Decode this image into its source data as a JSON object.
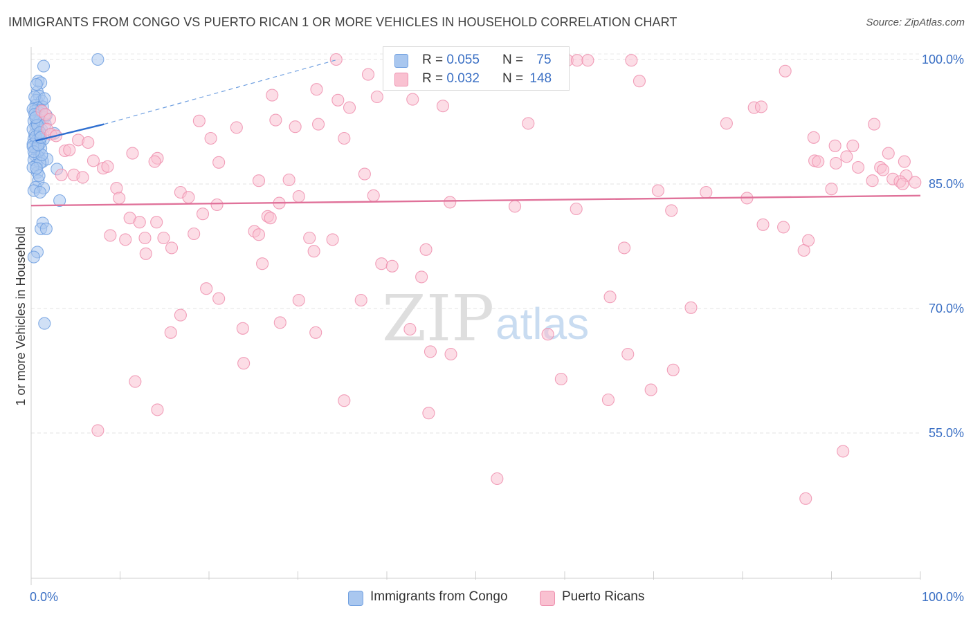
{
  "title": "IMMIGRANTS FROM CONGO VS PUERTO RICAN 1 OR MORE VEHICLES IN HOUSEHOLD CORRELATION CHART",
  "source": "Source: ZipAtlas.com",
  "legend": {
    "rows": [
      {
        "r_label": "R = ",
        "r_value": "0.055",
        "n_label": "N = ",
        "n_value": "75",
        "color": "#a9c7ef",
        "stroke": "#6f9fe0"
      },
      {
        "r_label": "R = ",
        "r_value": "0.032",
        "n_label": "N = ",
        "n_value": "148",
        "color": "#f9c1d1",
        "stroke": "#ee8fae"
      }
    ]
  },
  "bottom_legend": [
    {
      "label": "Immigrants from Congo",
      "color": "#a9c7ef"
    },
    {
      "label": "Puerto Ricans",
      "color": "#f9c1d1"
    }
  ],
  "chart_data": {
    "type": "scatter",
    "title": "IMMIGRANTS FROM CONGO VS PUERTO RICAN 1 OR MORE VEHICLES IN HOUSEHOLD CORRELATION CHART",
    "xlabel": "",
    "ylabel": "1 or more Vehicles in Household",
    "xlim": [
      0,
      100
    ],
    "ylim": [
      40,
      100.5
    ],
    "x_tick_labels": [
      "0.0%",
      "100.0%"
    ],
    "y_ticks": [
      55,
      70,
      85,
      100
    ],
    "y_tick_labels": [
      "55.0%",
      "70.0%",
      "85.0%",
      "100.0%"
    ],
    "grid": true,
    "watermark": {
      "left": "ZIP",
      "right": "atlas"
    },
    "series": [
      {
        "name": "Immigrants from Congo",
        "color": "#6f9fe0",
        "fill": "#a9c7ef",
        "trend": {
          "x": [
            0.5,
            8.2
          ],
          "y": [
            90.2,
            92.2
          ],
          "dashed_to": [
            34.5,
            100
          ]
        },
        "points": [
          [
            7.5,
            100
          ],
          [
            1.4,
            99.2
          ],
          [
            0.8,
            97.4
          ],
          [
            1.1,
            97.2
          ],
          [
            0.7,
            96.1
          ],
          [
            0.9,
            95.6
          ],
          [
            0.6,
            95.1
          ],
          [
            1.2,
            95.0
          ],
          [
            0.5,
            94.5
          ],
          [
            0.8,
            94.2
          ],
          [
            1.3,
            94.3
          ],
          [
            0.4,
            93.8
          ],
          [
            0.9,
            93.6
          ],
          [
            1.1,
            93.9
          ],
          [
            0.6,
            93.2
          ],
          [
            1.5,
            93.0
          ],
          [
            0.3,
            92.6
          ],
          [
            0.7,
            92.4
          ],
          [
            1.0,
            92.7
          ],
          [
            0.5,
            92.0
          ],
          [
            0.8,
            91.7
          ],
          [
            1.2,
            91.5
          ],
          [
            0.4,
            91.0
          ],
          [
            0.9,
            90.9
          ],
          [
            2.6,
            91.1
          ],
          [
            0.3,
            90.4
          ],
          [
            0.6,
            90.2
          ],
          [
            1.4,
            90.4
          ],
          [
            0.2,
            89.8
          ],
          [
            0.7,
            89.6
          ],
          [
            1.0,
            89.9
          ],
          [
            0.5,
            89.2
          ],
          [
            0.8,
            89.0
          ],
          [
            1.1,
            89.3
          ],
          [
            0.4,
            88.5
          ],
          [
            0.9,
            88.2
          ],
          [
            0.3,
            87.9
          ],
          [
            1.3,
            87.7
          ],
          [
            1.8,
            88.0
          ],
          [
            0.6,
            87.3
          ],
          [
            1.0,
            87.5
          ],
          [
            2.9,
            86.8
          ],
          [
            0.7,
            86.4
          ],
          [
            0.8,
            85.4
          ],
          [
            0.5,
            84.6
          ],
          [
            1.4,
            84.5
          ],
          [
            0.3,
            84.2
          ],
          [
            1.0,
            84.0
          ],
          [
            3.2,
            83.0
          ],
          [
            1.3,
            80.3
          ],
          [
            1.1,
            79.6
          ],
          [
            1.7,
            79.6
          ],
          [
            0.7,
            76.8
          ],
          [
            0.3,
            76.2
          ],
          [
            1.5,
            68.2
          ],
          [
            0.2,
            94.0
          ],
          [
            0.2,
            91.6
          ],
          [
            0.2,
            89.5
          ],
          [
            0.2,
            87.0
          ],
          [
            0.4,
            95.5
          ],
          [
            1.6,
            92.2
          ],
          [
            0.6,
            97.0
          ],
          [
            1.2,
            88.5
          ],
          [
            0.9,
            86.0
          ],
          [
            0.5,
            90.7
          ],
          [
            1.5,
            95.3
          ],
          [
            0.4,
            93.4
          ],
          [
            0.7,
            92.1
          ],
          [
            1.0,
            91.2
          ],
          [
            0.3,
            88.9
          ],
          [
            0.6,
            86.9
          ],
          [
            1.7,
            93.3
          ],
          [
            0.8,
            89.7
          ],
          [
            0.5,
            93.0
          ],
          [
            1.1,
            90.6
          ]
        ]
      },
      {
        "name": "Puerto Ricans",
        "color": "#ee8fae",
        "fill": "#f9c1d1",
        "trend": {
          "x": [
            0,
            100
          ],
          "y": [
            82.4,
            83.6
          ]
        },
        "points": [
          [
            34.3,
            100
          ],
          [
            43.7,
            99.9
          ],
          [
            47.8,
            99.9
          ],
          [
            50.3,
            99.9
          ],
          [
            60.3,
            99.9
          ],
          [
            61.4,
            99.9
          ],
          [
            62.6,
            99.9
          ],
          [
            67.5,
            99.9
          ],
          [
            47.3,
            98.2
          ],
          [
            37.9,
            98.2
          ],
          [
            84.8,
            98.6
          ],
          [
            43.8,
            97.4
          ],
          [
            45.1,
            97.3
          ],
          [
            46.6,
            97.2
          ],
          [
            68.4,
            97.4
          ],
          [
            32.1,
            96.4
          ],
          [
            27.1,
            95.7
          ],
          [
            38.9,
            95.5
          ],
          [
            42.9,
            95.2
          ],
          [
            34.5,
            95.1
          ],
          [
            46.3,
            94.4
          ],
          [
            35.8,
            94.2
          ],
          [
            81.3,
            94.2
          ],
          [
            82.1,
            94.3
          ],
          [
            1.2,
            93.8
          ],
          [
            1.6,
            93.4
          ],
          [
            2.1,
            92.8
          ],
          [
            18.9,
            92.6
          ],
          [
            27.5,
            92.7
          ],
          [
            32.3,
            92.2
          ],
          [
            55.9,
            92.3
          ],
          [
            78.2,
            92.3
          ],
          [
            94.8,
            92.2
          ],
          [
            23.1,
            91.8
          ],
          [
            29.7,
            91.9
          ],
          [
            1.8,
            91.6
          ],
          [
            2.2,
            91.0
          ],
          [
            2.8,
            90.8
          ],
          [
            20.2,
            90.5
          ],
          [
            35.2,
            90.5
          ],
          [
            88.0,
            90.6
          ],
          [
            5.3,
            90.3
          ],
          [
            6.4,
            90.0
          ],
          [
            90.4,
            89.6
          ],
          [
            92.4,
            89.6
          ],
          [
            3.8,
            89.0
          ],
          [
            4.3,
            89.1
          ],
          [
            11.4,
            88.7
          ],
          [
            14.2,
            88.1
          ],
          [
            96.4,
            88.7
          ],
          [
            7.0,
            87.8
          ],
          [
            13.9,
            87.7
          ],
          [
            21.1,
            87.6
          ],
          [
            88.1,
            87.8
          ],
          [
            88.5,
            87.7
          ],
          [
            90.5,
            87.5
          ],
          [
            91.7,
            88.3
          ],
          [
            98.2,
            87.7
          ],
          [
            8.1,
            86.9
          ],
          [
            8.6,
            87.1
          ],
          [
            93.0,
            87.0
          ],
          [
            95.5,
            87.0
          ],
          [
            95.8,
            86.7
          ],
          [
            3.4,
            86.1
          ],
          [
            4.8,
            86.1
          ],
          [
            5.8,
            85.8
          ],
          [
            25.6,
            85.4
          ],
          [
            29.0,
            85.5
          ],
          [
            37.5,
            86.2
          ],
          [
            98.4,
            86.0
          ],
          [
            99.4,
            85.2
          ],
          [
            94.6,
            85.4
          ],
          [
            96.9,
            85.6
          ],
          [
            97.7,
            85.3
          ],
          [
            98.0,
            85.0
          ],
          [
            9.6,
            84.5
          ],
          [
            16.8,
            84.0
          ],
          [
            70.5,
            84.2
          ],
          [
            75.9,
            84.0
          ],
          [
            90.0,
            84.4
          ],
          [
            9.9,
            83.3
          ],
          [
            17.7,
            83.4
          ],
          [
            30.1,
            83.5
          ],
          [
            38.5,
            83.6
          ],
          [
            80.5,
            83.3
          ],
          [
            47.1,
            82.8
          ],
          [
            20.9,
            82.5
          ],
          [
            27.9,
            82.7
          ],
          [
            54.4,
            82.3
          ],
          [
            61.3,
            82.0
          ],
          [
            72.0,
            81.8
          ],
          [
            19.3,
            81.4
          ],
          [
            11.1,
            80.9
          ],
          [
            12.2,
            80.4
          ],
          [
            14.1,
            80.4
          ],
          [
            26.6,
            81.1
          ],
          [
            26.9,
            80.9
          ],
          [
            82.3,
            80.1
          ],
          [
            84.6,
            79.8
          ],
          [
            25.1,
            79.3
          ],
          [
            25.6,
            78.9
          ],
          [
            8.9,
            78.8
          ],
          [
            10.6,
            78.3
          ],
          [
            12.8,
            78.5
          ],
          [
            14.9,
            78.5
          ],
          [
            18.3,
            79.0
          ],
          [
            31.3,
            78.5
          ],
          [
            33.9,
            78.3
          ],
          [
            15.8,
            77.3
          ],
          [
            44.4,
            77.1
          ],
          [
            66.7,
            77.3
          ],
          [
            86.9,
            77.0
          ],
          [
            87.4,
            78.2
          ],
          [
            31.8,
            76.9
          ],
          [
            12.9,
            76.6
          ],
          [
            26.0,
            75.4
          ],
          [
            39.4,
            75.4
          ],
          [
            40.6,
            75.1
          ],
          [
            43.9,
            73.8
          ],
          [
            19.7,
            72.4
          ],
          [
            21.1,
            71.2
          ],
          [
            30.1,
            71.0
          ],
          [
            37.1,
            71.0
          ],
          [
            65.1,
            71.4
          ],
          [
            74.2,
            70.1
          ],
          [
            16.8,
            69.2
          ],
          [
            28.0,
            68.3
          ],
          [
            23.8,
            67.6
          ],
          [
            15.7,
            67.1
          ],
          [
            32.0,
            67.1
          ],
          [
            42.6,
            67.5
          ],
          [
            58.1,
            66.9
          ],
          [
            44.9,
            64.8
          ],
          [
            47.2,
            64.5
          ],
          [
            67.1,
            64.5
          ],
          [
            23.9,
            63.4
          ],
          [
            72.2,
            62.6
          ],
          [
            11.7,
            61.2
          ],
          [
            59.6,
            61.5
          ],
          [
            69.7,
            60.2
          ],
          [
            35.2,
            58.9
          ],
          [
            64.9,
            59.0
          ],
          [
            44.7,
            57.4
          ],
          [
            14.2,
            57.8
          ],
          [
            7.5,
            55.3
          ],
          [
            91.3,
            52.8
          ],
          [
            87.1,
            47.1
          ],
          [
            52.4,
            49.5
          ]
        ]
      }
    ]
  }
}
